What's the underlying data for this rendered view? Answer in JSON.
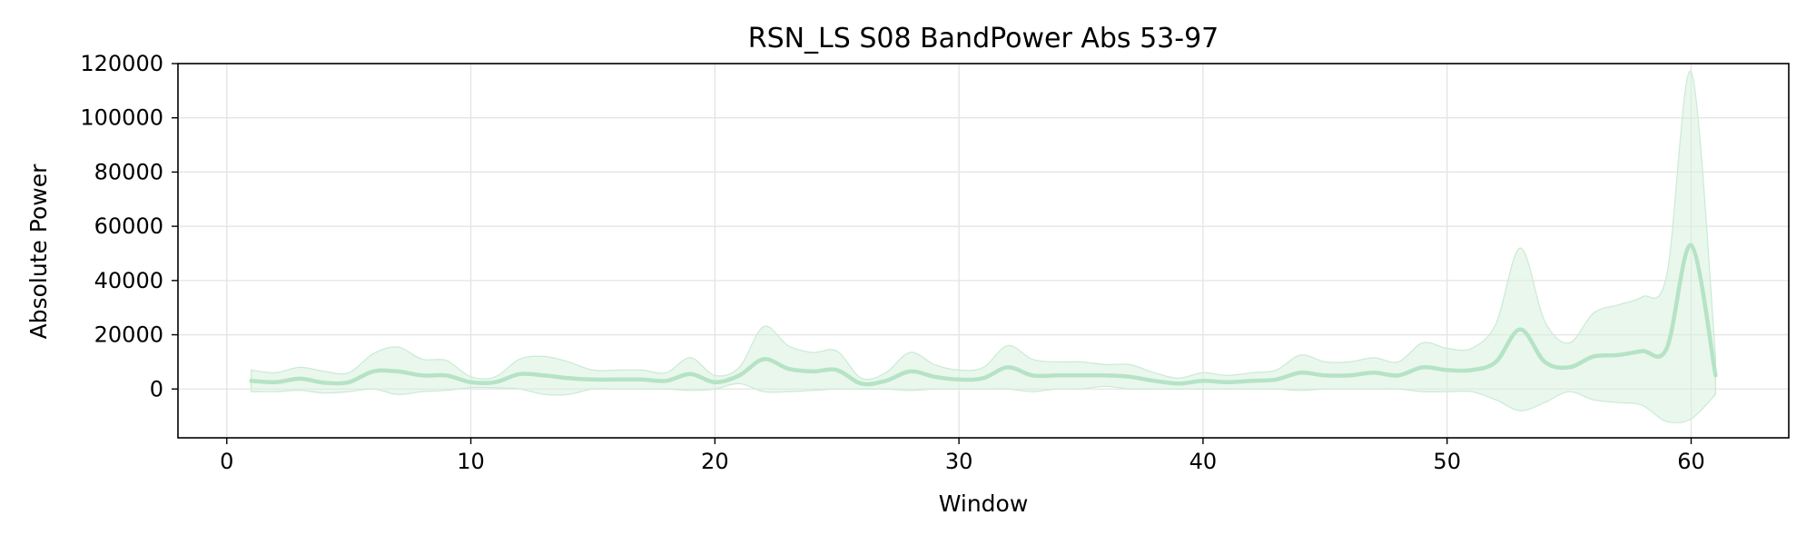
{
  "chart_data": {
    "type": "line",
    "title": "RSN_LS S08 BandPower Abs 53-97",
    "xlabel": "Window",
    "ylabel": "Absolute Power",
    "xlim": [
      -2,
      64
    ],
    "ylim": [
      -18000,
      120000
    ],
    "xticks": [
      0,
      10,
      20,
      30,
      40,
      50,
      60
    ],
    "yticks": [
      0,
      20000,
      40000,
      60000,
      80000,
      100000,
      120000
    ],
    "grid": true,
    "line_color": "#b5e3c6",
    "band_color": "#d8f0df",
    "series": [
      {
        "x": [
          1,
          2,
          3,
          4,
          5,
          6,
          7,
          8,
          9,
          10,
          11,
          12,
          13,
          14,
          15,
          16,
          17,
          18,
          19,
          20,
          21,
          22,
          23,
          24,
          25,
          26,
          27,
          28,
          29,
          30,
          31,
          32,
          33,
          34,
          35,
          36,
          37,
          38,
          39,
          40,
          41,
          42,
          43,
          44,
          45,
          46,
          47,
          48,
          49,
          50,
          51,
          52,
          53,
          54,
          55,
          56,
          57,
          58,
          59,
          60,
          61
        ],
        "y": [
          3000,
          2500,
          3800,
          2300,
          2500,
          6500,
          6500,
          5000,
          5000,
          2500,
          2500,
          5500,
          5000,
          4000,
          3500,
          3500,
          3500,
          3000,
          5500,
          2500,
          5000,
          11000,
          7500,
          6500,
          7000,
          2000,
          3000,
          6500,
          4500,
          3500,
          4000,
          8000,
          5000,
          5000,
          5000,
          5000,
          4500,
          3000,
          2000,
          3000,
          2500,
          3000,
          3500,
          6000,
          5000,
          5000,
          6000,
          5000,
          8000,
          7000,
          7000,
          10000,
          22000,
          10000,
          8000,
          12000,
          12500,
          14000,
          15000,
          53000,
          5000
        ],
        "upper": [
          7000,
          6000,
          8000,
          6500,
          6000,
          13000,
          15500,
          11000,
          10500,
          4500,
          4500,
          11000,
          12000,
          10000,
          7000,
          7000,
          7000,
          6000,
          11500,
          5000,
          8000,
          23000,
          16000,
          13500,
          14000,
          4000,
          6000,
          13500,
          9000,
          7000,
          8000,
          16000,
          11000,
          10000,
          10000,
          9000,
          9000,
          6000,
          4000,
          6000,
          5000,
          6000,
          7000,
          12500,
          10000,
          10000,
          11500,
          10000,
          17000,
          15000,
          15000,
          24000,
          52000,
          25000,
          17000,
          28000,
          31000,
          34000,
          42000,
          117000,
          12000
        ],
        "lower": [
          -1000,
          -1000,
          -500,
          -1500,
          -1000,
          0,
          -2000,
          -1000,
          -500,
          500,
          500,
          0,
          -2000,
          -2000,
          0,
          0,
          0,
          0,
          -500,
          0,
          2000,
          -1000,
          -1000,
          -500,
          0,
          0,
          0,
          -500,
          0,
          0,
          0,
          0,
          -1000,
          0,
          0,
          1000,
          0,
          0,
          0,
          0,
          0,
          0,
          0,
          -500,
          0,
          0,
          0,
          0,
          -1000,
          -1000,
          -1000,
          -4000,
          -8000,
          -5000,
          -1000,
          -4000,
          -5000,
          -6000,
          -12000,
          -11000,
          -2000
        ]
      }
    ]
  }
}
